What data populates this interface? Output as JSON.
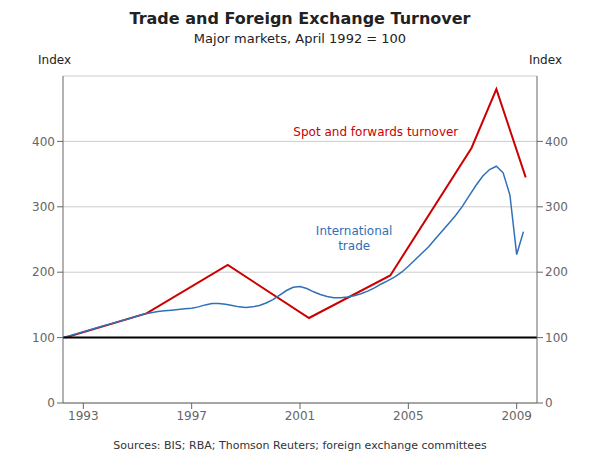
{
  "chart_data": {
    "type": "line",
    "title": "Trade and Foreign Exchange Turnover",
    "subtitle": "Major markets, April 1992 = 100",
    "ylabel": "Index",
    "y2label": "Index",
    "source": "Sources: BIS; RBA; Thomson Reuters; foreign exchange committees",
    "xlim": [
      1992.25,
      2009.75
    ],
    "xticks": [
      1993,
      1997,
      2001,
      2005,
      2009
    ],
    "ylim": [
      0,
      500
    ],
    "yticks": [
      0,
      100,
      200,
      300,
      400
    ],
    "y2lim": [
      0,
      500
    ],
    "y2ticks": [
      0,
      100,
      200,
      300,
      400
    ],
    "grid": true,
    "series": [
      {
        "name": "Spot and forwards turnover",
        "color": "#cc0000",
        "x": [
          1992.333,
          1995.333,
          1998.333,
          2001.333,
          2004.333,
          2007.333,
          2008.25,
          2009.333
        ],
        "values": [
          100,
          137,
          211,
          130,
          195,
          390,
          480,
          345
        ]
      },
      {
        "name": "International\ntrade",
        "color": "#3070b8",
        "x": [
          1992.25,
          1992.5,
          1992.75,
          1993.0,
          1993.25,
          1993.5,
          1993.75,
          1994.0,
          1994.25,
          1994.5,
          1994.75,
          1995.0,
          1995.25,
          1995.5,
          1995.75,
          1996.0,
          1996.25,
          1996.5,
          1996.75,
          1997.0,
          1997.25,
          1997.5,
          1997.75,
          1998.0,
          1998.25,
          1998.5,
          1998.75,
          1999.0,
          1999.25,
          1999.5,
          1999.75,
          2000.0,
          2000.25,
          2000.5,
          2000.75,
          2001.0,
          2001.25,
          2001.5,
          2001.75,
          2002.0,
          2002.25,
          2002.5,
          2002.75,
          2003.0,
          2003.25,
          2003.5,
          2003.75,
          2004.0,
          2004.25,
          2004.5,
          2004.75,
          2005.0,
          2005.25,
          2005.5,
          2005.75,
          2006.0,
          2006.25,
          2006.5,
          2006.75,
          2007.0,
          2007.25,
          2007.5,
          2007.75,
          2008.0,
          2008.25,
          2008.5,
          2008.75,
          2009.0,
          2009.25
        ],
        "values": [
          100,
          103,
          106,
          109,
          112,
          115,
          118,
          121,
          124,
          127,
          130,
          133,
          136,
          138,
          140,
          141,
          142,
          143,
          144,
          145,
          147,
          150,
          152,
          152,
          151,
          149,
          147,
          146,
          147,
          149,
          153,
          158,
          165,
          172,
          177,
          178,
          175,
          170,
          166,
          163,
          161,
          161,
          162,
          164,
          167,
          171,
          176,
          182,
          187,
          193,
          200,
          209,
          219,
          229,
          239,
          251,
          263,
          275,
          287,
          301,
          317,
          333,
          347,
          357,
          362,
          352,
          318,
          227,
          262
        ]
      }
    ],
    "hline": {
      "y": 100,
      "color": "black"
    },
    "annotations": [
      {
        "text": "Spot and forwards turnover",
        "x": 2003.8,
        "y": 415,
        "color": "#cc0000"
      },
      {
        "text": "International\ntrade",
        "x": 2003.0,
        "y": 252,
        "color": "#3070b8"
      }
    ]
  }
}
